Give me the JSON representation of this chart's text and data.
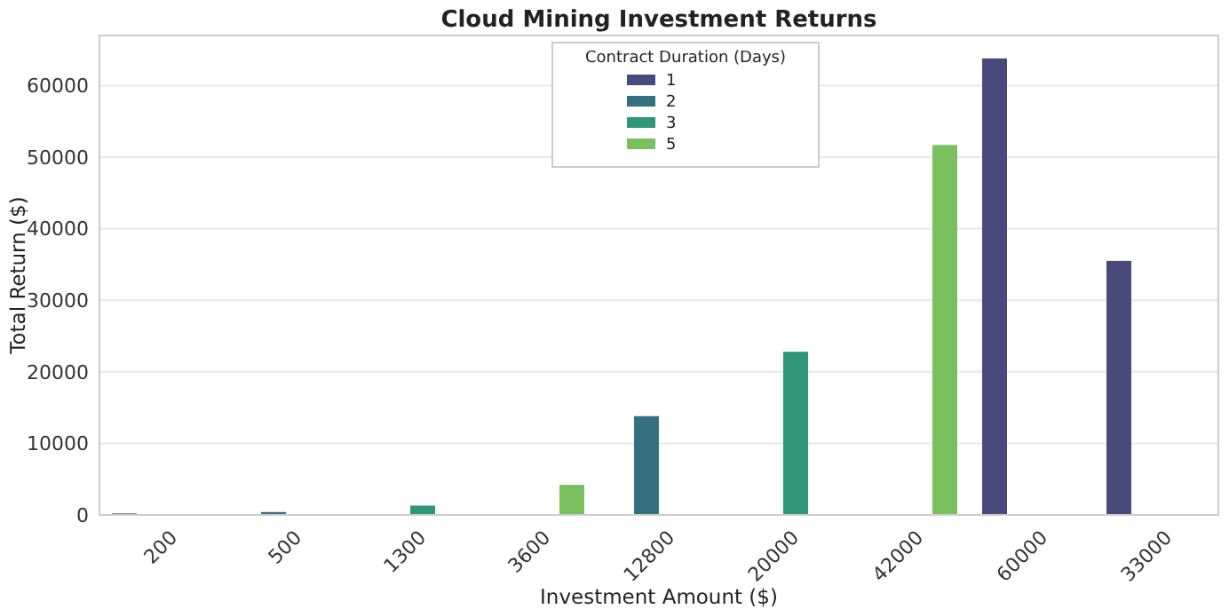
{
  "chart_data": {
    "type": "bar",
    "title": "Cloud Mining Investment Returns",
    "xlabel": "Investment Amount ($)",
    "ylabel": "Total Return ($)",
    "legend_title": "Contract Duration (Days)",
    "categories": [
      "200",
      "500",
      "1300",
      "3600",
      "12800",
      "20000",
      "42000",
      "60000",
      "33000"
    ],
    "series": [
      {
        "name": "1",
        "color": "#484a7b",
        "values": [
          200,
          null,
          null,
          null,
          null,
          null,
          null,
          63800,
          35500
        ]
      },
      {
        "name": "2",
        "color": "#34707f",
        "values": [
          null,
          400,
          null,
          null,
          13800,
          null,
          null,
          null,
          null
        ]
      },
      {
        "name": "3",
        "color": "#2f9679",
        "values": [
          null,
          null,
          1300,
          null,
          null,
          22800,
          null,
          null,
          null
        ]
      },
      {
        "name": "5",
        "color": "#7bc05f",
        "values": [
          null,
          null,
          null,
          4200,
          null,
          null,
          51700,
          null,
          null
        ]
      }
    ],
    "ylim": [
      0,
      67000
    ],
    "yticks": [
      0,
      10000,
      20000,
      30000,
      40000,
      50000,
      60000
    ],
    "grid": "y",
    "legend": "top"
  }
}
